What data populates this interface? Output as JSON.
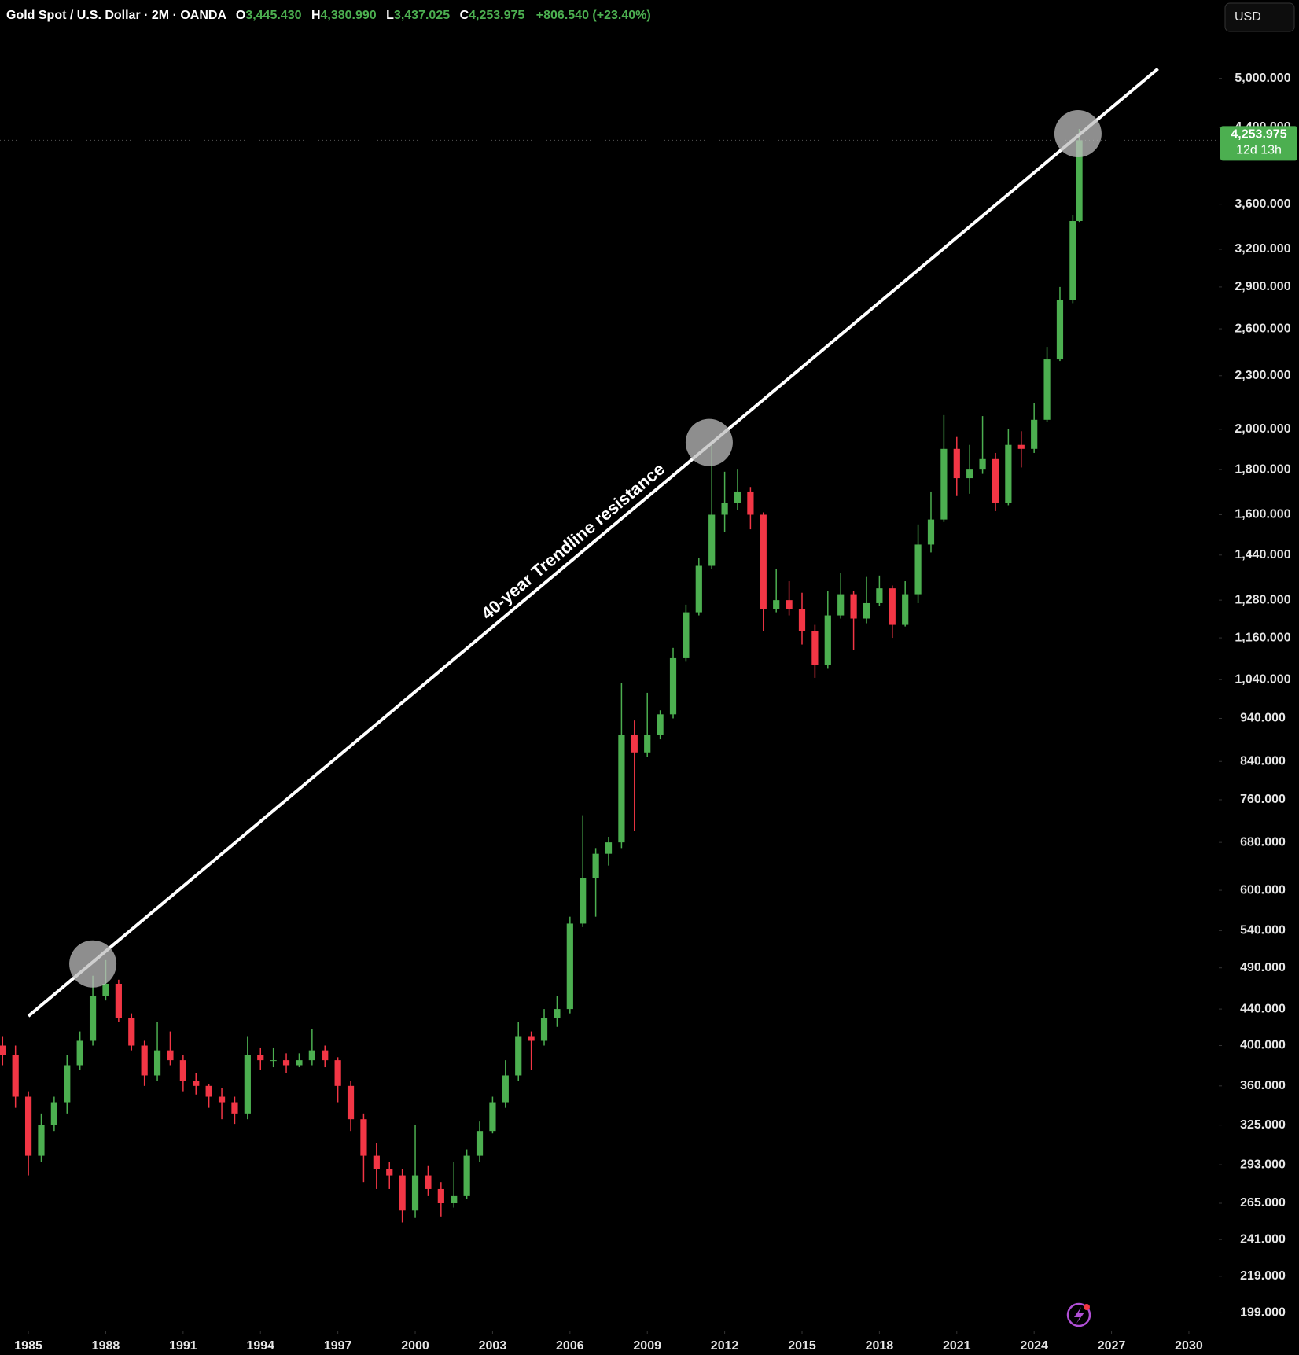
{
  "chart_data": {
    "type": "candlestick",
    "title": "Gold Spot / U.S. Dollar · 2M · OANDA",
    "ohlc_legend": [
      {
        "key": "O",
        "value": "3,445.430"
      },
      {
        "key": "H",
        "value": "4,380.990"
      },
      {
        "key": "L",
        "value": "3,437.025"
      },
      {
        "key": "C",
        "value": "4,253.975"
      }
    ],
    "change": "+806.540 (+23.40%)",
    "currency": "USD",
    "up_color": "#4caf50",
    "down_color": "#f23645",
    "log_scale": true,
    "grid": false,
    "x": [
      1984.0,
      1984.5,
      1985.0,
      1985.5,
      1986.0,
      1986.5,
      1987.0,
      1987.5,
      1988.0,
      1988.5,
      1989.0,
      1989.5,
      1990.0,
      1990.5,
      1991.0,
      1991.5,
      1992.0,
      1992.5,
      1993.0,
      1993.5,
      1994.0,
      1994.5,
      1995.0,
      1995.5,
      1996.0,
      1996.5,
      1997.0,
      1997.5,
      1998.0,
      1998.5,
      1999.0,
      1999.5,
      2000.0,
      2000.5,
      2001.0,
      2001.5,
      2002.0,
      2002.5,
      2003.0,
      2003.5,
      2004.0,
      2004.5,
      2005.0,
      2005.5,
      2006.0,
      2006.5,
      2007.0,
      2007.5,
      2008.0,
      2008.5,
      2009.0,
      2009.5,
      2010.0,
      2010.5,
      2011.0,
      2011.5,
      2012.0,
      2012.5,
      2013.0,
      2013.5,
      2014.0,
      2014.5,
      2015.0,
      2015.5,
      2016.0,
      2016.5,
      2017.0,
      2017.5,
      2018.0,
      2018.5,
      2019.0,
      2019.5,
      2020.0,
      2020.5,
      2021.0,
      2021.5,
      2022.0,
      2022.5,
      2023.0,
      2023.5,
      2024.0,
      2024.5,
      2025.0,
      2025.5,
      2025.75
    ],
    "open": [
      400,
      390,
      350,
      300,
      325,
      345,
      380,
      405,
      455,
      470,
      430,
      400,
      370,
      395,
      385,
      365,
      360,
      350,
      345,
      335,
      390,
      385,
      385,
      380,
      385,
      395,
      385,
      360,
      330,
      300,
      290,
      285,
      260,
      285,
      275,
      265,
      270,
      300,
      320,
      345,
      370,
      410,
      405,
      430,
      440,
      550,
      620,
      660,
      680,
      900,
      860,
      900,
      950,
      1100,
      1240,
      1400,
      1600,
      1650,
      1700,
      1600,
      1250,
      1280,
      1250,
      1180,
      1080,
      1230,
      1300,
      1220,
      1270,
      1320,
      1200,
      1300,
      1480,
      1580,
      1900,
      1760,
      1800,
      1850,
      1650,
      1920,
      1900,
      2050,
      2400,
      2800,
      3445.43
    ],
    "high": [
      410,
      400,
      355,
      335,
      350,
      390,
      415,
      480,
      500,
      475,
      435,
      405,
      425,
      415,
      390,
      372,
      362,
      358,
      350,
      410,
      398,
      398,
      392,
      392,
      418,
      400,
      388,
      365,
      335,
      310,
      295,
      290,
      325,
      292,
      280,
      295,
      305,
      328,
      350,
      385,
      425,
      415,
      440,
      455,
      560,
      730,
      670,
      690,
      1030,
      935,
      1005,
      960,
      1130,
      1265,
      1430,
      1920,
      1790,
      1800,
      1720,
      1610,
      1390,
      1345,
      1305,
      1200,
      1310,
      1375,
      1310,
      1360,
      1365,
      1330,
      1345,
      1560,
      1700,
      2075,
      1960,
      1920,
      2070,
      1880,
      2000,
      1990,
      2140,
      2480,
      2900,
      3500,
      4380.99
    ],
    "low": [
      380,
      340,
      285,
      295,
      320,
      335,
      375,
      400,
      450,
      425,
      395,
      360,
      365,
      380,
      355,
      352,
      340,
      330,
      326,
      330,
      375,
      378,
      372,
      378,
      380,
      378,
      345,
      320,
      280,
      275,
      275,
      252,
      255,
      270,
      256,
      262,
      268,
      295,
      318,
      340,
      365,
      375,
      400,
      420,
      435,
      545,
      560,
      640,
      670,
      700,
      850,
      890,
      940,
      1090,
      1230,
      1390,
      1530,
      1620,
      1540,
      1180,
      1240,
      1230,
      1140,
      1045,
      1070,
      1220,
      1125,
      1205,
      1260,
      1160,
      1195,
      1270,
      1450,
      1570,
      1680,
      1690,
      1780,
      1615,
      1640,
      1810,
      1880,
      2040,
      2390,
      2780,
      3437.025
    ],
    "close": [
      390,
      350,
      300,
      325,
      345,
      380,
      405,
      455,
      470,
      430,
      400,
      370,
      395,
      385,
      365,
      360,
      350,
      345,
      335,
      390,
      385,
      385,
      380,
      385,
      395,
      385,
      360,
      330,
      300,
      290,
      285,
      260,
      285,
      275,
      265,
      270,
      300,
      320,
      345,
      370,
      410,
      405,
      430,
      440,
      550,
      620,
      660,
      680,
      900,
      860,
      900,
      950,
      1100,
      1240,
      1400,
      1600,
      1650,
      1700,
      1600,
      1250,
      1280,
      1250,
      1180,
      1080,
      1230,
      1300,
      1220,
      1270,
      1320,
      1200,
      1300,
      1480,
      1580,
      1900,
      1760,
      1800,
      1850,
      1650,
      1920,
      1900,
      2050,
      2400,
      2800,
      3445.43,
      4253.975
    ],
    "xlim": [
      1983.9,
      2031.16
    ],
    "xticks": [
      1985,
      1988,
      1991,
      1994,
      1997,
      2000,
      2003,
      2006,
      2009,
      2012,
      2015,
      2018,
      2021,
      2024,
      2027,
      2030
    ],
    "ylim": [
      190,
      5675
    ],
    "yticks": [
      {
        "value": 5000,
        "label": "5,000.000"
      },
      {
        "value": 4400,
        "label": "4,400.000"
      },
      {
        "value": 3600,
        "label": "3,600.000"
      },
      {
        "value": 3200,
        "label": "3,200.000"
      },
      {
        "value": 2900,
        "label": "2,900.000"
      },
      {
        "value": 2600,
        "label": "2,600.000"
      },
      {
        "value": 2300,
        "label": "2,300.000"
      },
      {
        "value": 2000,
        "label": "2,000.000"
      },
      {
        "value": 1800,
        "label": "1,800.000"
      },
      {
        "value": 1600,
        "label": "1,600.000"
      },
      {
        "value": 1440,
        "label": "1,440.000"
      },
      {
        "value": 1280,
        "label": "1,280.000"
      },
      {
        "value": 1160,
        "label": "1,160.000"
      },
      {
        "value": 1040,
        "label": "1,040.000"
      },
      {
        "value": 940,
        "label": "940.000"
      },
      {
        "value": 840,
        "label": "840.000"
      },
      {
        "value": 760,
        "label": "760.000"
      },
      {
        "value": 680,
        "label": "680.000"
      },
      {
        "value": 600,
        "label": "600.000"
      },
      {
        "value": 540,
        "label": "540.000"
      },
      {
        "value": 490,
        "label": "490.000"
      },
      {
        "value": 440,
        "label": "440.000"
      },
      {
        "value": 400,
        "label": "400.000"
      },
      {
        "value": 360,
        "label": "360.000"
      },
      {
        "value": 325,
        "label": "325.000"
      },
      {
        "value": 293,
        "label": "293.000"
      },
      {
        "value": 265,
        "label": "265.000"
      },
      {
        "value": 241,
        "label": "241.000"
      },
      {
        "value": 219,
        "label": "219.000"
      },
      {
        "value": 199,
        "label": "199.000"
      }
    ],
    "last_price": {
      "label": "4,253.975",
      "countdown": "12d 13h"
    },
    "trendline": {
      "label": "40-year Trendline resistance",
      "x": [
        1985.0,
        2028.8
      ],
      "y": [
        432,
        5127
      ],
      "color": "#ffffff"
    },
    "highlights": {
      "x": [
        1987.5,
        2011.4,
        2025.7
      ],
      "y": [
        495,
        1932,
        4327
      ]
    }
  }
}
